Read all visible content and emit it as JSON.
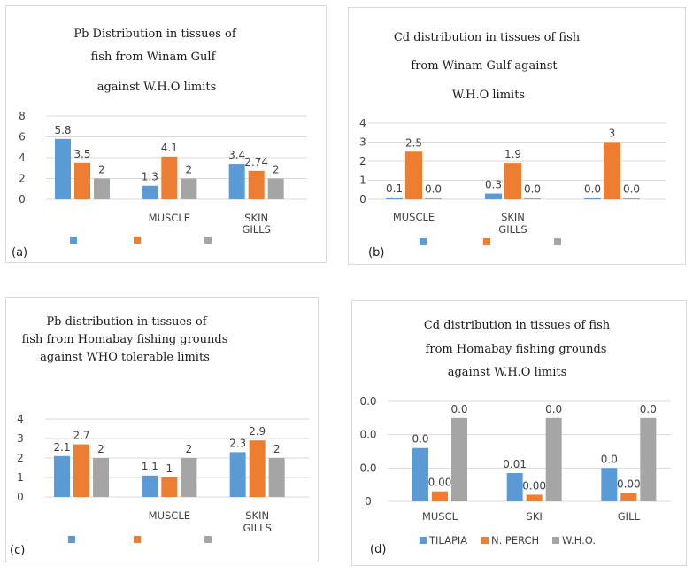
{
  "colors": {
    "series1": "#5b9bd5",
    "series2": "#ed7d31",
    "series3": "#a5a5a5",
    "gridline": "#d9d9d9"
  },
  "chart_data": [
    {
      "id": "a",
      "type": "bar",
      "panel_label": "(a)",
      "title_lines": [
        "Pb Distribution in tissues of",
        "fish from Winam Gulf",
        "against W.H.O limits"
      ],
      "categories": [
        "",
        "MUSCLE",
        "SKIN\nGILLS"
      ],
      "series": [
        {
          "name": "",
          "values": [
            5.8,
            1.3,
            3.4
          ],
          "labels": [
            "5.8",
            "1.3",
            "3.4"
          ]
        },
        {
          "name": "",
          "values": [
            3.5,
            4.1,
            2.74
          ],
          "labels": [
            "3.5",
            "4.1",
            "2.74"
          ]
        },
        {
          "name": "",
          "values": [
            2,
            2,
            2
          ],
          "labels": [
            "2",
            "2",
            "2"
          ]
        }
      ],
      "yticks": [
        "0",
        "2",
        "4",
        "6",
        "8"
      ],
      "ylim": [
        0,
        8
      ],
      "legend": [
        "",
        "",
        ""
      ],
      "legend_position": "bottom",
      "grid": true
    },
    {
      "id": "b",
      "type": "bar",
      "panel_label": "(b)",
      "title_lines": [
        "Cd distribution in tissues of fish",
        "from Winam Gulf against",
        "W.H.O limits"
      ],
      "categories": [
        "MUSCLE",
        "SKIN\nGILLS",
        ""
      ],
      "series": [
        {
          "name": "",
          "values": [
            0.1,
            0.3,
            0.0
          ],
          "labels": [
            "0.1",
            "0.3",
            "0.0"
          ]
        },
        {
          "name": "",
          "values": [
            2.5,
            1.9,
            3
          ],
          "labels": [
            "2.5",
            "1.9",
            "3"
          ]
        },
        {
          "name": "",
          "values": [
            0.0,
            0.0,
            0.0
          ],
          "labels": [
            "0.0",
            "0.0",
            "0.0"
          ]
        }
      ],
      "yticks": [
        "0",
        "1",
        "2",
        "3",
        "4"
      ],
      "ylim": [
        0,
        4
      ],
      "legend": [
        "",
        "",
        ""
      ],
      "legend_position": "bottom",
      "grid": true
    },
    {
      "id": "c",
      "type": "bar",
      "panel_label": "(c)",
      "title_lines": [
        "Pb distribution in tissues of",
        "fish from Homabay fishing grounds",
        "against WHO tolerable limits"
      ],
      "categories": [
        "",
        "MUSCLE",
        "SKIN\nGILLS"
      ],
      "series": [
        {
          "name": "",
          "values": [
            2.1,
            1.1,
            2.3
          ],
          "labels": [
            "2.1",
            "1.1",
            "2.3"
          ]
        },
        {
          "name": "",
          "values": [
            2.7,
            1,
            2.9
          ],
          "labels": [
            "2.7",
            "1",
            "2.9"
          ]
        },
        {
          "name": "",
          "values": [
            2,
            2,
            2
          ],
          "labels": [
            "2",
            "2",
            "2"
          ]
        }
      ],
      "yticks": [
        "0",
        "1",
        "2",
        "3",
        "4"
      ],
      "ylim": [
        0,
        4
      ],
      "legend": [
        "",
        "",
        ""
      ],
      "legend_position": "bottom",
      "grid": true
    },
    {
      "id": "d",
      "type": "bar",
      "panel_label": "(d)",
      "title_lines": [
        "Cd distribution in tissues of fish",
        "from Homabay fishing grounds",
        "against W.H.O limits"
      ],
      "categories": [
        "MUSCL",
        "SKI",
        "GILL"
      ],
      "series": [
        {
          "name": "TILAPIA",
          "values": [
            0.016,
            0.0085,
            0.01
          ],
          "labels": [
            "0.0",
            "0.01",
            "0.0"
          ]
        },
        {
          "name": "N. PERCH",
          "values": [
            0.003,
            0.002,
            0.0025
          ],
          "labels": [
            "0.00",
            "0.00",
            "0.00"
          ]
        },
        {
          "name": "W.H.O.",
          "values": [
            0.025,
            0.025,
            0.025
          ],
          "labels": [
            "0.0",
            "0.0",
            "0.0"
          ]
        }
      ],
      "yticks": [
        "0",
        "0.0",
        "0.0",
        "0.0"
      ],
      "ylim": [
        0,
        0.03
      ],
      "legend": [
        "TILAPIA",
        "N. PERCH",
        "W.H.O."
      ],
      "legend_position": "bottom",
      "grid": true
    }
  ]
}
